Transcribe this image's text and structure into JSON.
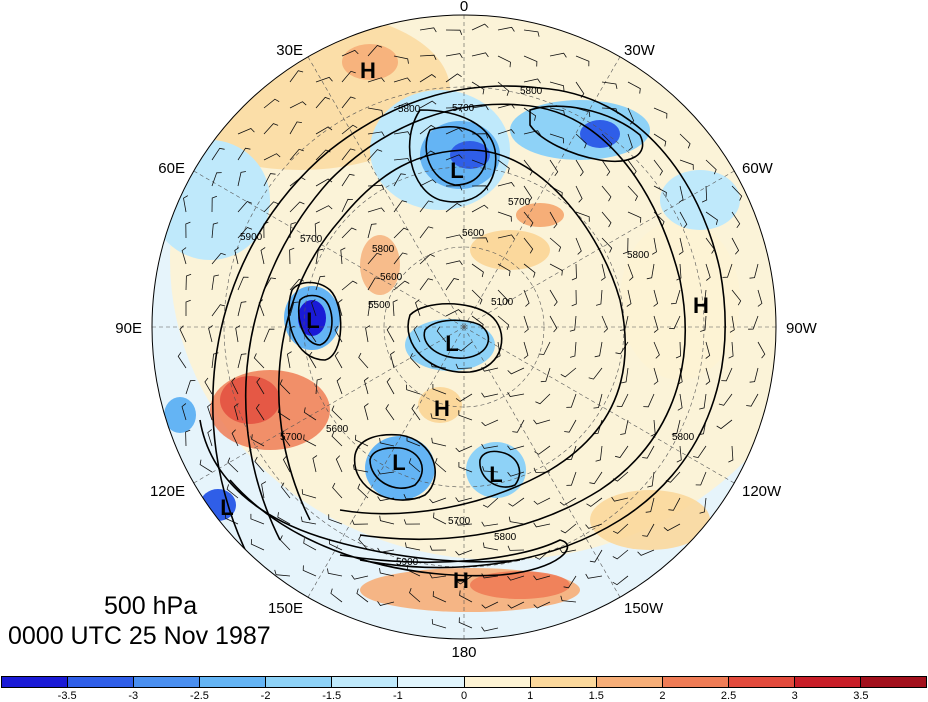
{
  "title": {
    "level": "500 hPa",
    "time": "0000 UTC 25 Nov 1987"
  },
  "map": {
    "projection": "polar stereographic (north pole)",
    "longitude_labels": [
      "0",
      "30W",
      "60W",
      "90W",
      "120W",
      "150W",
      "180",
      "150E",
      "120E",
      "90E",
      "60E",
      "30E"
    ],
    "height_contour_labels": [
      "5700",
      "5800",
      "5800",
      "5700",
      "5600",
      "5900",
      "5800",
      "5700",
      "5500",
      "5600",
      "5100",
      "5800",
      "5700",
      "5900",
      "5800",
      "5800",
      "5600",
      "5700"
    ],
    "highs_lows": [
      "H",
      "L",
      "L",
      "H",
      "L",
      "H",
      "L",
      "L",
      "H",
      "L"
    ]
  },
  "colorbar": {
    "tick_labels": [
      "-3.5",
      "-3",
      "-2.5",
      "-2",
      "-1.5",
      "-1",
      "0",
      "1",
      "1.5",
      "2",
      "2.5",
      "3",
      "3.5"
    ],
    "colors": [
      "#1a1ad6",
      "#2f5ee8",
      "#4a8ff0",
      "#64b4f4",
      "#8ed2f7",
      "#bfe9fb",
      "#e1f5fd",
      "#fdf3d4",
      "#fbd89c",
      "#f6ae78",
      "#ef7c56",
      "#e24a3c",
      "#c81e28",
      "#a2101c"
    ]
  }
}
